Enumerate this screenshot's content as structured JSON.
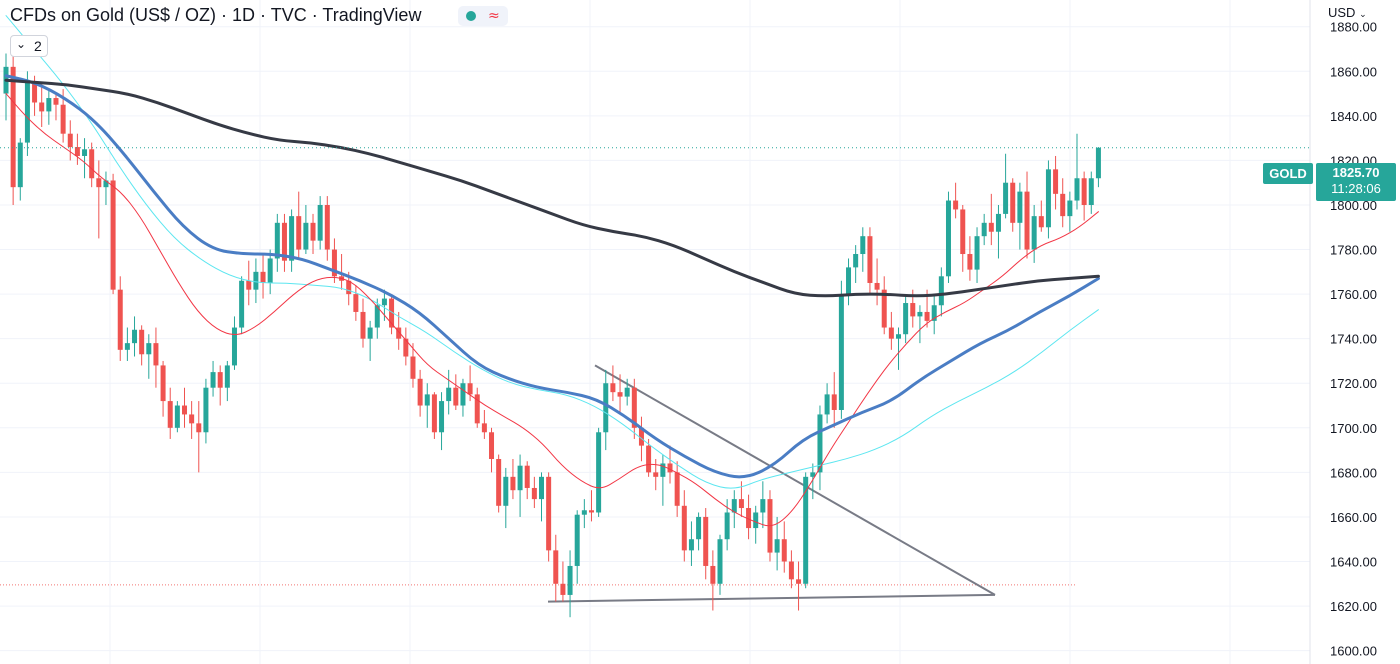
{
  "header": {
    "title": "CFDs on Gold (US$ / OZ) · 1D · TVC · TradingView",
    "indicator_count": "2",
    "currency": "USD"
  },
  "last": {
    "symbol": "GOLD",
    "price": "1825.70",
    "countdown": "11:28:06",
    "price_value": 1825.7
  },
  "colors": {
    "up": "#26a69a",
    "down": "#ef5350",
    "ma_short": "#f23645",
    "ma_mid": "#4a7dc4",
    "ma_long": "#363a45",
    "ma_cyan": "#5ce6f0",
    "trendline": "#787b86",
    "grid": "#f0f3fa"
  },
  "chart_data": {
    "type": "candlestick",
    "y_ticks": [
      "1600.00",
      "1620.00",
      "1640.00",
      "1660.00",
      "1680.00",
      "1700.00",
      "1720.00",
      "1740.00",
      "1760.00",
      "1780.00",
      "1800.00",
      "1820.00",
      "1840.00",
      "1860.00",
      "1880.00"
    ],
    "ylim": [
      1594,
      1892
    ],
    "grid": true,
    "candles": [
      [
        1850,
        1868,
        1838,
        1862
      ],
      [
        1862,
        1870,
        1800,
        1808
      ],
      [
        1808,
        1830,
        1802,
        1828
      ],
      [
        1828,
        1860,
        1822,
        1855
      ],
      [
        1855,
        1858,
        1840,
        1846
      ],
      [
        1846,
        1855,
        1835,
        1842
      ],
      [
        1842,
        1852,
        1836,
        1848
      ],
      [
        1848,
        1850,
        1838,
        1845
      ],
      [
        1845,
        1852,
        1828,
        1832
      ],
      [
        1832,
        1838,
        1820,
        1826
      ],
      [
        1826,
        1832,
        1818,
        1822
      ],
      [
        1822,
        1830,
        1812,
        1825
      ],
      [
        1825,
        1828,
        1808,
        1812
      ],
      [
        1812,
        1820,
        1785,
        1808
      ],
      [
        1808,
        1815,
        1800,
        1811
      ],
      [
        1811,
        1814,
        1760,
        1762
      ],
      [
        1762,
        1768,
        1730,
        1735
      ],
      [
        1735,
        1745,
        1730,
        1738
      ],
      [
        1738,
        1750,
        1732,
        1744
      ],
      [
        1744,
        1746,
        1728,
        1733
      ],
      [
        1733,
        1742,
        1722,
        1738
      ],
      [
        1738,
        1745,
        1718,
        1728
      ],
      [
        1728,
        1730,
        1705,
        1712
      ],
      [
        1712,
        1718,
        1695,
        1700
      ],
      [
        1700,
        1712,
        1698,
        1710
      ],
      [
        1710,
        1718,
        1700,
        1706
      ],
      [
        1706,
        1712,
        1695,
        1702
      ],
      [
        1702,
        1712,
        1680,
        1698
      ],
      [
        1698,
        1722,
        1693,
        1718
      ],
      [
        1718,
        1730,
        1714,
        1725
      ],
      [
        1725,
        1728,
        1710,
        1718
      ],
      [
        1718,
        1730,
        1712,
        1728
      ],
      [
        1728,
        1750,
        1726,
        1745
      ],
      [
        1745,
        1768,
        1742,
        1766
      ],
      [
        1766,
        1775,
        1755,
        1762
      ],
      [
        1762,
        1776,
        1756,
        1770
      ],
      [
        1770,
        1778,
        1758,
        1765
      ],
      [
        1765,
        1780,
        1760,
        1776
      ],
      [
        1776,
        1796,
        1770,
        1792
      ],
      [
        1792,
        1796,
        1770,
        1775
      ],
      [
        1775,
        1798,
        1770,
        1795
      ],
      [
        1795,
        1806,
        1776,
        1780
      ],
      [
        1780,
        1800,
        1778,
        1792
      ],
      [
        1792,
        1796,
        1778,
        1784
      ],
      [
        1784,
        1804,
        1780,
        1800
      ],
      [
        1800,
        1804,
        1775,
        1780
      ],
      [
        1780,
        1785,
        1765,
        1768
      ],
      [
        1768,
        1778,
        1762,
        1766
      ],
      [
        1766,
        1770,
        1755,
        1760
      ],
      [
        1760,
        1764,
        1748,
        1752
      ],
      [
        1752,
        1758,
        1736,
        1740
      ],
      [
        1740,
        1748,
        1730,
        1745
      ],
      [
        1745,
        1758,
        1740,
        1755
      ],
      [
        1755,
        1762,
        1748,
        1758
      ],
      [
        1758,
        1760,
        1742,
        1745
      ],
      [
        1745,
        1752,
        1735,
        1740
      ],
      [
        1740,
        1745,
        1728,
        1732
      ],
      [
        1732,
        1738,
        1718,
        1722
      ],
      [
        1722,
        1726,
        1705,
        1710
      ],
      [
        1710,
        1720,
        1700,
        1715
      ],
      [
        1715,
        1716,
        1695,
        1698
      ],
      [
        1698,
        1716,
        1690,
        1712
      ],
      [
        1712,
        1726,
        1706,
        1718
      ],
      [
        1718,
        1724,
        1708,
        1710
      ],
      [
        1710,
        1722,
        1705,
        1720
      ],
      [
        1720,
        1728,
        1712,
        1715
      ],
      [
        1715,
        1718,
        1700,
        1702
      ],
      [
        1702,
        1708,
        1695,
        1698
      ],
      [
        1698,
        1700,
        1680,
        1686
      ],
      [
        1686,
        1688,
        1662,
        1665
      ],
      [
        1665,
        1682,
        1655,
        1678
      ],
      [
        1678,
        1686,
        1668,
        1672
      ],
      [
        1672,
        1688,
        1660,
        1683
      ],
      [
        1683,
        1685,
        1668,
        1673
      ],
      [
        1673,
        1678,
        1664,
        1668
      ],
      [
        1668,
        1680,
        1658,
        1678
      ],
      [
        1678,
        1680,
        1640,
        1645
      ],
      [
        1645,
        1652,
        1622,
        1630
      ],
      [
        1630,
        1640,
        1622,
        1625
      ],
      [
        1625,
        1645,
        1615,
        1638
      ],
      [
        1638,
        1663,
        1630,
        1661
      ],
      [
        1661,
        1668,
        1655,
        1663
      ],
      [
        1663,
        1672,
        1658,
        1662
      ],
      [
        1662,
        1700,
        1660,
        1698
      ],
      [
        1698,
        1726,
        1690,
        1720
      ],
      [
        1720,
        1728,
        1712,
        1716
      ],
      [
        1716,
        1724,
        1706,
        1714
      ],
      [
        1714,
        1722,
        1710,
        1718
      ],
      [
        1718,
        1722,
        1695,
        1700
      ],
      [
        1700,
        1705,
        1685,
        1692
      ],
      [
        1692,
        1695,
        1678,
        1680
      ],
      [
        1680,
        1686,
        1672,
        1678
      ],
      [
        1678,
        1688,
        1665,
        1684
      ],
      [
        1684,
        1692,
        1675,
        1680
      ],
      [
        1680,
        1685,
        1660,
        1665
      ],
      [
        1665,
        1672,
        1640,
        1645
      ],
      [
        1645,
        1658,
        1638,
        1650
      ],
      [
        1650,
        1662,
        1645,
        1660
      ],
      [
        1660,
        1664,
        1632,
        1638
      ],
      [
        1638,
        1645,
        1618,
        1630
      ],
      [
        1630,
        1652,
        1625,
        1650
      ],
      [
        1650,
        1668,
        1645,
        1662
      ],
      [
        1662,
        1672,
        1655,
        1668
      ],
      [
        1668,
        1676,
        1660,
        1664
      ],
      [
        1664,
        1670,
        1650,
        1655
      ],
      [
        1655,
        1665,
        1648,
        1662
      ],
      [
        1662,
        1676,
        1655,
        1668
      ],
      [
        1668,
        1672,
        1640,
        1644
      ],
      [
        1644,
        1660,
        1636,
        1650
      ],
      [
        1650,
        1658,
        1635,
        1640
      ],
      [
        1640,
        1645,
        1628,
        1632
      ],
      [
        1632,
        1640,
        1618,
        1630
      ],
      [
        1630,
        1680,
        1628,
        1678
      ],
      [
        1678,
        1684,
        1668,
        1680
      ],
      [
        1680,
        1710,
        1672,
        1706
      ],
      [
        1706,
        1720,
        1702,
        1715
      ],
      [
        1715,
        1725,
        1700,
        1708
      ],
      [
        1708,
        1766,
        1704,
        1760
      ],
      [
        1760,
        1776,
        1755,
        1772
      ],
      [
        1772,
        1782,
        1765,
        1778
      ],
      [
        1778,
        1790,
        1770,
        1786
      ],
      [
        1786,
        1790,
        1760,
        1765
      ],
      [
        1765,
        1776,
        1755,
        1762
      ],
      [
        1762,
        1768,
        1742,
        1745
      ],
      [
        1745,
        1752,
        1735,
        1740
      ],
      [
        1740,
        1745,
        1726,
        1742
      ],
      [
        1742,
        1760,
        1738,
        1756
      ],
      [
        1756,
        1762,
        1745,
        1750
      ],
      [
        1750,
        1755,
        1738,
        1752
      ],
      [
        1752,
        1762,
        1745,
        1748
      ],
      [
        1748,
        1760,
        1742,
        1755
      ],
      [
        1755,
        1772,
        1750,
        1768
      ],
      [
        1768,
        1806,
        1765,
        1802
      ],
      [
        1802,
        1810,
        1794,
        1798
      ],
      [
        1798,
        1800,
        1770,
        1778
      ],
      [
        1778,
        1786,
        1766,
        1771
      ],
      [
        1771,
        1790,
        1765,
        1786
      ],
      [
        1786,
        1796,
        1782,
        1792
      ],
      [
        1792,
        1805,
        1782,
        1788
      ],
      [
        1788,
        1800,
        1776,
        1796
      ],
      [
        1796,
        1823,
        1794,
        1810
      ],
      [
        1810,
        1812,
        1788,
        1792
      ],
      [
        1792,
        1810,
        1780,
        1806
      ],
      [
        1806,
        1815,
        1776,
        1780
      ],
      [
        1780,
        1800,
        1774,
        1795
      ],
      [
        1795,
        1802,
        1788,
        1790
      ],
      [
        1790,
        1820,
        1785,
        1816
      ],
      [
        1816,
        1822,
        1798,
        1805
      ],
      [
        1805,
        1812,
        1790,
        1795
      ],
      [
        1795,
        1806,
        1788,
        1802
      ],
      [
        1802,
        1832,
        1798,
        1812
      ],
      [
        1812,
        1815,
        1793,
        1800
      ],
      [
        1800,
        1815,
        1796,
        1812
      ],
      [
        1812,
        1826,
        1808,
        1825.7
      ]
    ],
    "ma_red": [
      1850,
      1840,
      1832,
      1826,
      1820,
      1812,
      1806,
      1795,
      1780,
      1765,
      1752,
      1744,
      1741,
      1745,
      1752,
      1760,
      1766,
      1768,
      1766,
      1758,
      1748,
      1738,
      1728,
      1722,
      1716,
      1710,
      1705,
      1700,
      1693,
      1683,
      1676,
      1672,
      1677,
      1683,
      1684,
      1680,
      1675,
      1668,
      1662,
      1658,
      1655,
      1662,
      1675,
      1690,
      1703,
      1716,
      1728,
      1738,
      1747,
      1752,
      1756,
      1762,
      1768,
      1776,
      1782,
      1785,
      1790,
      1797
    ],
    "ma_cyan": [
      1885,
      1870,
      1855,
      1838,
      1818,
      1800,
      1785,
      1775,
      1768,
      1765,
      1765,
      1764,
      1763,
      1758,
      1750,
      1743,
      1734,
      1726,
      1720,
      1717,
      1715,
      1710,
      1702,
      1692,
      1683,
      1675,
      1672,
      1677,
      1680,
      1683,
      1686,
      1690,
      1696,
      1705,
      1712,
      1718,
      1725,
      1734,
      1744,
      1753
    ],
    "ma_blue": [
      1858,
      1855,
      1848,
      1838,
      1823,
      1806,
      1790,
      1780,
      1778,
      1778,
      1776,
      1771,
      1766,
      1760,
      1752,
      1740,
      1728,
      1722,
      1718,
      1716,
      1713,
      1705,
      1695,
      1687,
      1680,
      1677,
      1683,
      1695,
      1701,
      1707,
      1712,
      1722,
      1730,
      1738,
      1744,
      1752,
      1759,
      1767
    ],
    "ma_black": [
      1856,
      1855,
      1854,
      1852,
      1850,
      1846,
      1841,
      1836,
      1832,
      1829,
      1828,
      1826,
      1823,
      1819,
      1815,
      1811,
      1806,
      1801,
      1796,
      1791,
      1788,
      1786,
      1782,
      1776,
      1770,
      1765,
      1760,
      1759,
      1760,
      1760,
      1759,
      1760,
      1762,
      1764,
      1766,
      1767,
      1768
    ],
    "last_price": 1825.7,
    "reference_price": 1629.5,
    "trendlines": [
      {
        "from_price": 1728,
        "to_price": 1625
      },
      {
        "from_price": 1622,
        "to_price": 1625
      }
    ]
  }
}
